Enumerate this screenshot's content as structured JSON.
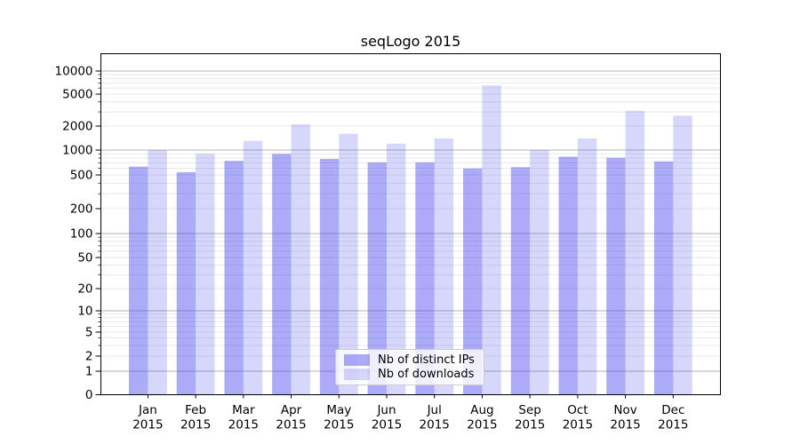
{
  "chart_data": {
    "type": "bar",
    "title": "seqLogo 2015",
    "categories": [
      "Jan 2015",
      "Feb 2015",
      "Mar 2015",
      "Apr 2015",
      "May 2015",
      "Jun 2015",
      "Jul 2015",
      "Aug 2015",
      "Sep 2015",
      "Oct 2015",
      "Nov 2015",
      "Dec 2015"
    ],
    "series": [
      {
        "name": "Nb of distinct IPs",
        "color": "#4444ee",
        "alpha": 0.45,
        "values": [
          630,
          540,
          740,
          900,
          780,
          710,
          710,
          600,
          620,
          830,
          810,
          730
        ]
      },
      {
        "name": "Nb of downloads",
        "color": "#4444ee",
        "alpha": 0.21,
        "values": [
          1000,
          900,
          1300,
          2100,
          1600,
          1200,
          1400,
          6500,
          1000,
          1400,
          3100,
          2700
        ]
      }
    ],
    "y_ticks": [
      0,
      1,
      2,
      5,
      10,
      20,
      50,
      100,
      200,
      500,
      1000,
      2000,
      5000,
      10000
    ],
    "y_scale": "symlog",
    "ylim": [
      0,
      17000
    ],
    "xlabel": "",
    "ylabel": "",
    "grid": true,
    "grid_major_color": "#b3b3b3",
    "grid_minor_color": "#e8e8e8",
    "legend_position": "lower center"
  }
}
